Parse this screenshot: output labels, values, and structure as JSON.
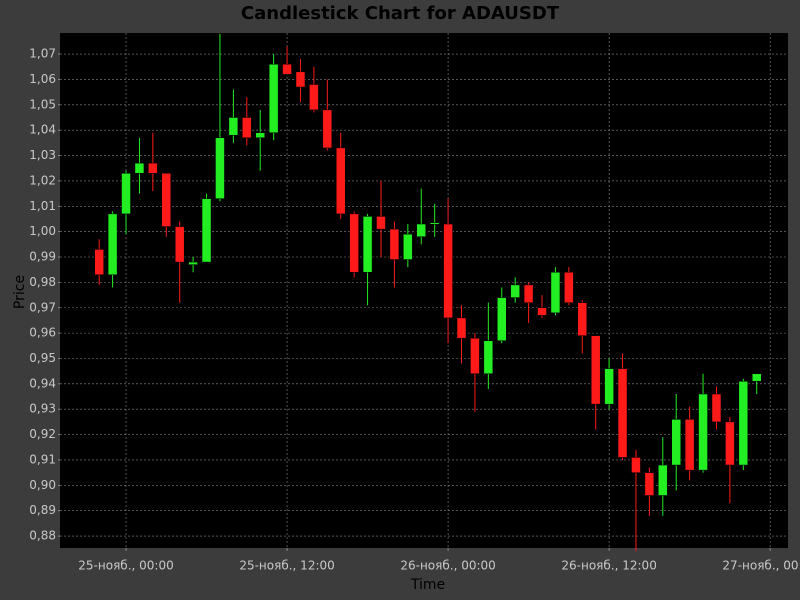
{
  "chart_data": {
    "type": "candlestick",
    "title": "Candlestick Chart for ADAUSDT",
    "x_label": "Time",
    "y_label": "Price",
    "x": [
      -2,
      -1,
      0,
      1,
      2,
      3,
      4,
      5,
      6,
      7,
      8,
      9,
      10,
      11,
      12,
      13,
      14,
      15,
      16,
      17,
      18,
      19,
      20,
      21,
      22,
      23,
      24,
      25,
      26,
      27,
      28,
      29,
      30,
      31,
      32,
      33,
      34,
      35,
      36,
      37,
      38,
      39,
      40,
      41,
      42,
      43,
      44,
      45,
      46,
      47
    ],
    "open": [
      0.993,
      0.983,
      1.007,
      1.023,
      1.027,
      1.023,
      1.002,
      0.987,
      0.988,
      1.013,
      1.038,
      1.045,
      1.037,
      1.039,
      1.066,
      1.063,
      1.058,
      1.048,
      1.033,
      1.007,
      0.984,
      1.006,
      1.001,
      0.989,
      0.998,
      1.003,
      1.003,
      0.966,
      0.958,
      0.944,
      0.957,
      0.974,
      0.979,
      0.97,
      0.968,
      0.984,
      0.972,
      0.959,
      0.932,
      0.946,
      0.911,
      0.905,
      0.896,
      0.908,
      0.926,
      0.906,
      0.936,
      0.925,
      0.908,
      0.941
    ],
    "high": [
      0.997,
      1.008,
      1.024,
      1.037,
      1.039,
      1.023,
      1.004,
      0.99,
      1.015,
      1.078,
      1.056,
      1.053,
      1.048,
      1.07,
      1.073,
      1.068,
      1.065,
      1.06,
      1.039,
      1.008,
      1.007,
      1.02,
      1.004,
      1.003,
      1.017,
      1.011,
      1.013,
      0.971,
      0.96,
      0.972,
      0.978,
      0.982,
      0.98,
      0.975,
      0.986,
      0.986,
      0.973,
      0.959,
      0.95,
      0.952,
      0.914,
      0.907,
      0.919,
      0.936,
      0.931,
      0.944,
      0.939,
      0.927,
      0.942,
      0.944
    ],
    "low": [
      0.979,
      0.978,
      0.999,
      1.015,
      1.016,
      0.998,
      0.972,
      0.984,
      0.988,
      1.012,
      1.035,
      1.034,
      1.024,
      1.036,
      1.062,
      1.051,
      1.047,
      1.032,
      1.005,
      0.982,
      0.971,
      0.99,
      0.978,
      0.986,
      0.995,
      0.998,
      0.956,
      0.948,
      0.929,
      0.938,
      0.956,
      0.972,
      0.964,
      0.966,
      0.967,
      0.971,
      0.952,
      0.922,
      0.93,
      0.91,
      0.874,
      0.888,
      0.888,
      0.898,
      0.902,
      0.905,
      0.922,
      0.893,
      0.906,
      0.936
    ],
    "close": [
      0.983,
      1.007,
      1.023,
      1.027,
      1.023,
      1.002,
      0.988,
      0.988,
      1.013,
      1.037,
      1.045,
      1.037,
      1.039,
      1.066,
      1.062,
      1.057,
      1.048,
      1.033,
      1.007,
      0.984,
      1.006,
      1.001,
      0.989,
      0.999,
      1.003,
      1.0035,
      0.966,
      0.958,
      0.944,
      0.957,
      0.974,
      0.979,
      0.972,
      0.967,
      0.984,
      0.972,
      0.959,
      0.932,
      0.946,
      0.911,
      0.905,
      0.896,
      0.908,
      0.926,
      0.906,
      0.936,
      0.925,
      0.908,
      0.941,
      0.944
    ],
    "up_color": "#22ee22",
    "down_color": "#ff1a1a",
    "xlim": [
      -4.92,
      49.33
    ],
    "xticks": [
      {
        "value": 0,
        "label": "25-нояб., 00:00"
      },
      {
        "value": 12,
        "label": "25-нояб., 12:00"
      },
      {
        "value": 24,
        "label": "26-нояб., 00:00"
      },
      {
        "value": 36,
        "label": "26-нояб., 12:00"
      },
      {
        "value": 48,
        "label": "27-нояб., 00:00"
      }
    ],
    "ylim": [
      0.8753,
      1.0783
    ],
    "yticks": [
      {
        "value": 0.88,
        "label": "0,88"
      },
      {
        "value": 0.89,
        "label": "0,89"
      },
      {
        "value": 0.9,
        "label": "0,90"
      },
      {
        "value": 0.91,
        "label": "0,91"
      },
      {
        "value": 0.92,
        "label": "0,92"
      },
      {
        "value": 0.93,
        "label": "0,93"
      },
      {
        "value": 0.94,
        "label": "0,94"
      },
      {
        "value": 0.95,
        "label": "0,95"
      },
      {
        "value": 0.96,
        "label": "0,96"
      },
      {
        "value": 0.97,
        "label": "0,97"
      },
      {
        "value": 0.98,
        "label": "0,98"
      },
      {
        "value": 0.99,
        "label": "0,99"
      },
      {
        "value": 1.0,
        "label": "1,00"
      },
      {
        "value": 1.01,
        "label": "1,01"
      },
      {
        "value": 1.02,
        "label": "1,02"
      },
      {
        "value": 1.03,
        "label": "1,03"
      },
      {
        "value": 1.04,
        "label": "1,04"
      },
      {
        "value": 1.05,
        "label": "1,05"
      },
      {
        "value": 1.06,
        "label": "1,06"
      },
      {
        "value": 1.07,
        "label": "1,07"
      }
    ],
    "grid": true
  }
}
